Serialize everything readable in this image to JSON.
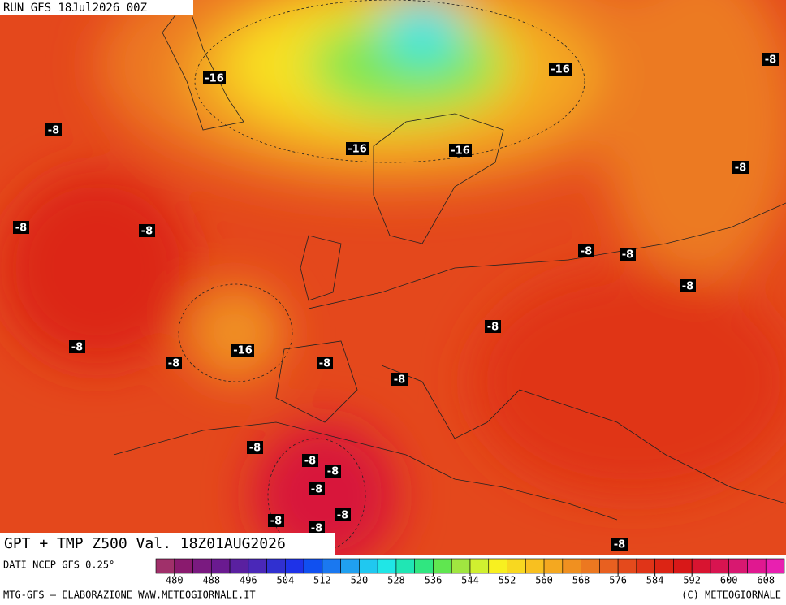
{
  "header": {
    "run": "RUN GFS 18Jul2026 00Z"
  },
  "map": {
    "labels": [
      "-16",
      "-16",
      "-8",
      "-8",
      "-16",
      "-16",
      "-8",
      "-8",
      "-8",
      "-8",
      "-8",
      "-8",
      "-8",
      "-8",
      "-16",
      "-8",
      "-8",
      "-8",
      "-8",
      "-8",
      "-8",
      "-8",
      "-8",
      "-8",
      "-8",
      "-8"
    ]
  },
  "title": "GPT + TMP Z500 Val. 18Z01AUG2026",
  "footer": {
    "source": "DATI NCEP GFS 0.25°",
    "credit": "MTG-GFS – ELABORAZIONE WWW.METEOGIORNALE.IT",
    "copyright": "(C) METEOGIORNALE"
  },
  "colorbar": {
    "range": [
      476,
      612
    ],
    "colors": [
      "#a0306a",
      "#8a1a6e",
      "#7a1a80",
      "#6a1a90",
      "#5a20a0",
      "#4a28b8",
      "#3030d0",
      "#1e32e8",
      "#1050f0",
      "#1a78f0",
      "#20a0f0",
      "#20c8f0",
      "#20e6e6",
      "#20e6b4",
      "#30e680",
      "#60e650",
      "#a0e640",
      "#d0f030",
      "#f8f020",
      "#f8d820",
      "#f8c020",
      "#f4a820",
      "#f09020",
      "#ec7820",
      "#e86020",
      "#e44a1c",
      "#e03418",
      "#dc2414",
      "#d81818",
      "#d81430",
      "#d81450",
      "#d81870",
      "#e01890",
      "#e820b0"
    ],
    "ticks": [
      480,
      488,
      496,
      504,
      512,
      520,
      528,
      536,
      544,
      552,
      560,
      568,
      576,
      584,
      592,
      600,
      608
    ]
  }
}
